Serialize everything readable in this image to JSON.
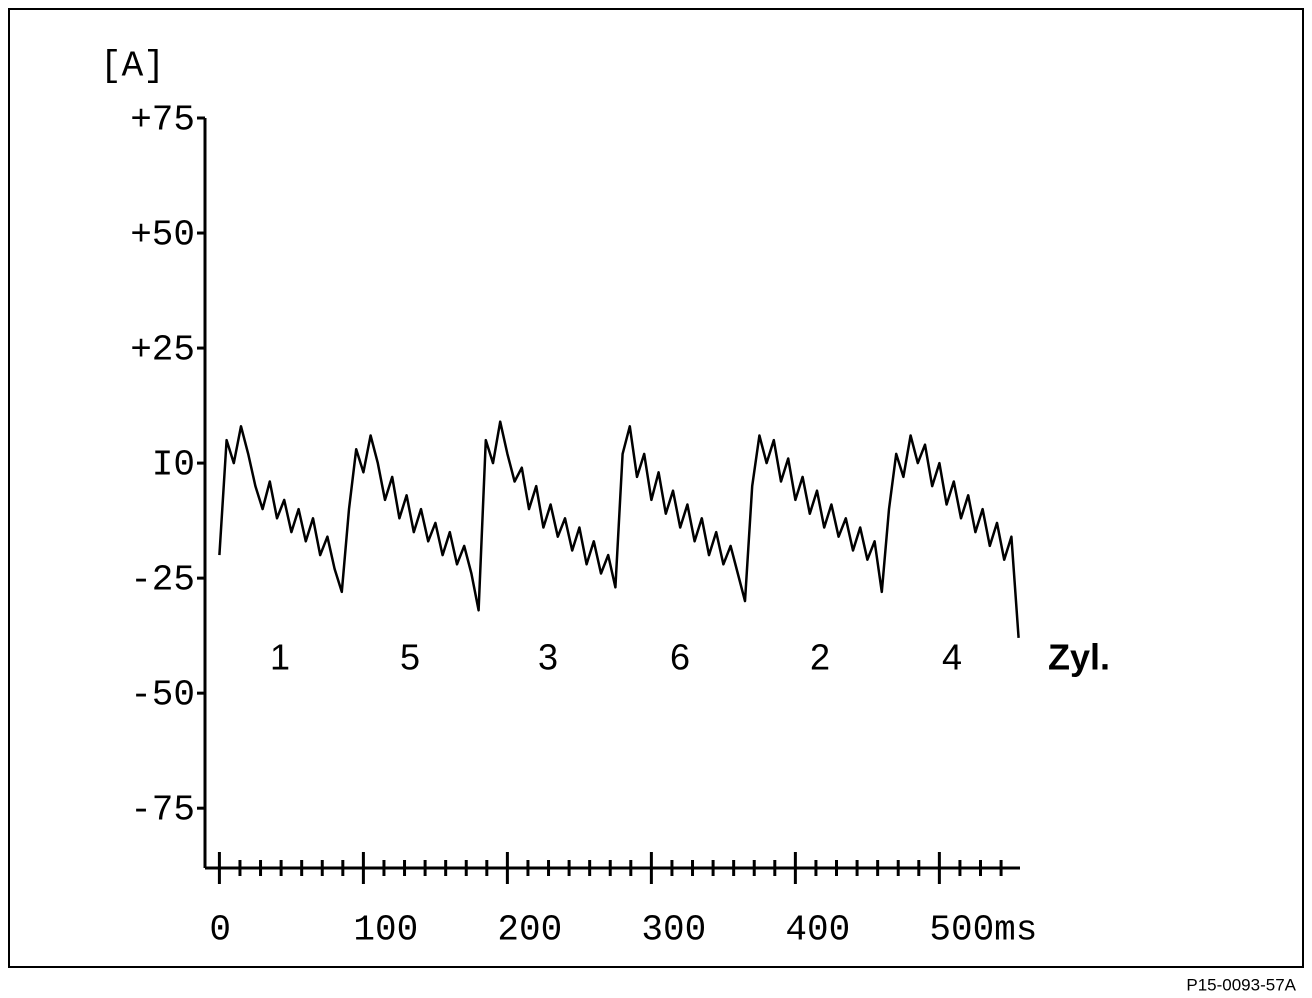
{
  "chart_data": {
    "type": "line",
    "y_label": "[A]",
    "x": [
      0,
      5,
      10,
      15,
      20,
      25,
      30,
      35,
      40,
      45,
      50,
      55,
      60,
      65,
      70,
      75,
      80,
      85,
      90,
      95,
      100,
      105,
      110,
      115,
      120,
      125,
      130,
      135,
      140,
      145,
      150,
      155,
      160,
      165,
      170,
      175,
      180,
      185,
      190,
      195,
      200,
      205,
      210,
      215,
      220,
      225,
      230,
      235,
      240,
      245,
      250,
      255,
      260,
      265,
      270,
      275,
      280,
      285,
      290,
      295,
      300,
      305,
      310,
      315,
      320,
      325,
      330,
      335,
      340,
      345,
      350,
      355,
      360,
      365,
      370,
      375,
      380,
      385,
      390,
      395,
      400,
      405,
      410,
      415,
      420,
      425,
      430,
      435,
      440,
      445,
      450,
      455,
      460,
      465,
      470,
      475,
      480,
      485,
      490,
      495,
      500,
      505,
      510,
      515,
      520,
      525,
      530,
      535,
      540,
      545,
      550,
      555
    ],
    "values": [
      -20,
      5,
      0,
      8,
      2,
      -5,
      -10,
      -4,
      -12,
      -8,
      -15,
      -10,
      -17,
      -12,
      -20,
      -16,
      -23,
      -28,
      -10,
      3,
      -2,
      6,
      0,
      -8,
      -3,
      -12,
      -7,
      -15,
      -10,
      -17,
      -13,
      -20,
      -15,
      -22,
      -18,
      -24,
      -32,
      5,
      0,
      9,
      2,
      -4,
      -1,
      -10,
      -5,
      -14,
      -9,
      -16,
      -12,
      -19,
      -14,
      -22,
      -17,
      -24,
      -20,
      -27,
      2,
      8,
      -3,
      2,
      -8,
      -2,
      -11,
      -6,
      -14,
      -9,
      -17,
      -12,
      -20,
      -15,
      -22,
      -18,
      -24,
      -30,
      -5,
      6,
      0,
      5,
      -4,
      1,
      -8,
      -3,
      -11,
      -6,
      -14,
      -9,
      -16,
      -12,
      -19,
      -14,
      -21,
      -17,
      -28,
      -10,
      2,
      -3,
      6,
      0,
      4,
      -5,
      0,
      -9,
      -4,
      -12,
      -7,
      -15,
      -10,
      -18,
      -13,
      -21,
      -16,
      -38
    ],
    "color": "#000000",
    "xlim": [
      -10,
      556
    ],
    "xticks": [
      0,
      100,
      200,
      300,
      400,
      {
        "value": 500,
        "label": "500ms"
      }
    ],
    "ylim": [
      -88,
      75
    ],
    "yticks": [
      {
        "value": 75,
        "label": "+75"
      },
      {
        "value": 50,
        "label": "+50"
      },
      {
        "value": 25,
        "label": "+25"
      },
      {
        "value": 0,
        "label": "I0"
      },
      -25,
      -50,
      -75
    ],
    "cylinders": [
      "1",
      "5",
      "3",
      "6",
      "2",
      "4"
    ],
    "cylinder_label": "Zyl.",
    "figure_id": "P15-0093-57A"
  }
}
